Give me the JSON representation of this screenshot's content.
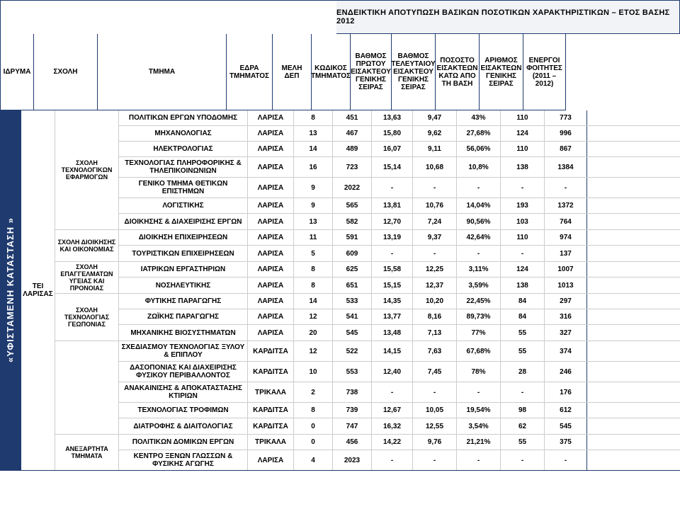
{
  "title": "ΕΝΔΕΙΚΤΙΚΗ ΑΠΟΤΥΠΩΣΗ ΒΑΣΙΚΩΝ ΠΟΣΟΤΙΚΩΝ ΧΑΡΑΚΤΗΡΙΣΤΙΚΩΝ – ΕΤΟΣ ΒΑΣΗΣ 2012",
  "vlabel": "«ΥΦΙΣΤΑΜΕΝΗ ΚΑΤΑΣΤΑΣΗ »",
  "idryma_label": "ΤΕΙ ΛΑΡΙΣΑΣ",
  "headers": {
    "idryma": "ΙΔΡΥΜΑ",
    "sxoli": "ΣΧΟΛΗ",
    "tmima": "ΤΜΗΜΑ",
    "edra": "ΕΔΡΑ ΤΜΗΜΑΤΟΣ",
    "meli": "ΜΕΛΗ ΔΕΠ",
    "kod": "ΚΩΔΙΚΟΣ ΤΜΗΜΑΤΟΣ",
    "bpr": "ΒΑΘΜΟΣ ΠΡΩΤΟΥ ΕΙΣΑΚΤΕΟΥ ΓΕΝΙΚΗΣ ΣΕΙΡΑΣ",
    "btel": "ΒΑΘΜΟΣ ΤΕΛΕΥΤΑΙΟΥ ΕΙΣΑΚΤΕΟΥ ΓΕΝΙΚΗΣ ΣΕΙΡΑΣ",
    "pos": "ΠΟΣΟΣΤΟ ΕΙΣΑΚΤΕΩΝ ΚΑΤΩ ΑΠΟ ΤΗ ΒΑΣΗ",
    "ar": "ΑΡΙΘΜΟΣ ΕΙΣΑΚΤΕΩΝ ΓΕΝΙΚΗΣ ΣΕΙΡΑΣ",
    "en": "ΕΝΕΡΓΟΙ ΦΟΙΤΗΤΕΣ (2011 – 2012)"
  },
  "schools": [
    {
      "name": "ΣΧΟΛΗ ΤΕΧΝΟΛΟΓΙΚΩΝ ΕΦΑΡΜΟΓΩΝ",
      "rows": [
        {
          "tmima": "ΠΟΛΙΤΙΚΩΝ ΕΡΓΩΝ ΥΠΟΔΟΜΗΣ",
          "edra": "ΛΑΡΙΣΑ",
          "meli": "8",
          "kod": "451",
          "bpr": "13,63",
          "btel": "9,47",
          "pos": "43%",
          "ar": "110",
          "en": "773"
        },
        {
          "tmima": "ΜΗΧΑΝΟΛΟΓΙΑΣ",
          "edra": "ΛΑΡΙΣΑ",
          "meli": "13",
          "kod": "467",
          "bpr": "15,80",
          "btel": "9,62",
          "pos": "27,68%",
          "ar": "124",
          "en": "996"
        },
        {
          "tmima": "ΗΛΕΚΤΡΟΛΟΓΙΑΣ",
          "edra": "ΛΑΡΙΣΑ",
          "meli": "14",
          "kod": "489",
          "bpr": "16,07",
          "btel": "9,11",
          "pos": "56,06%",
          "ar": "110",
          "en": "867"
        },
        {
          "tmima": "ΤΕΧΝΟΛΟΓΙΑΣ ΠΛΗΡΟΦΟΡΙΚΗΣ & ΤΗΛΕΠΙΚΟΙΝΩΝΙΩΝ",
          "edra": "ΛΑΡΙΣΑ",
          "meli": "16",
          "kod": "723",
          "bpr": "15,14",
          "btel": "10,68",
          "pos": "10,8%",
          "ar": "138",
          "en": "1384"
        },
        {
          "tmima": "ΓΕΝΙΚΟ ΤΜΗΜΑ ΘΕΤΙΚΩΝ ΕΠΙΣΤΗΜΩΝ",
          "edra": "ΛΑΡΙΣΑ",
          "meli": "9",
          "kod": "2022",
          "bpr": "-",
          "btel": "-",
          "pos": "-",
          "ar": "-",
          "en": "-"
        },
        {
          "tmima": "ΛΟΓΙΣΤΙΚΗΣ",
          "edra": "ΛΑΡΙΣΑ",
          "meli": "9",
          "kod": "565",
          "bpr": "13,81",
          "btel": "10,76",
          "pos": "14,04%",
          "ar": "193",
          "en": "1372"
        },
        {
          "tmima": "ΔΙΟΙΚΗΣΗΣ & ΔΙΑΧΕΙΡΙΣΗΣ ΕΡΓΩΝ",
          "edra": "ΛΑΡΙΣΑ",
          "meli": "13",
          "kod": "582",
          "bpr": "12,70",
          "btel": "7,24",
          "pos": "90,56%",
          "ar": "103",
          "en": "764"
        }
      ]
    },
    {
      "name": "ΣΧΟΛΗ ΔΙΟΙΚΗΣΗΣ ΚΑΙ ΟΙΚΟΝΟΜΙΑΣ",
      "rows": [
        {
          "tmima": "ΔΙΟΙΚΗΣΗ ΕΠΙΧΕΙΡΗΣΕΩΝ",
          "edra": "ΛΑΡΙΣΑ",
          "meli": "11",
          "kod": "591",
          "bpr": "13,19",
          "btel": "9,37",
          "pos": "42,64%",
          "ar": "110",
          "en": "974"
        },
        {
          "tmima": "ΤΟΥΡΙΣΤΙΚΩΝ ΕΠΙΧΕΙΡΗΣΕΩΝ",
          "edra": "ΛΑΡΙΣΑ",
          "meli": "5",
          "kod": "609",
          "bpr": "-",
          "btel": "-",
          "pos": "-",
          "ar": "-",
          "en": "137"
        }
      ]
    },
    {
      "name": "ΣΧΟΛΗ ΕΠΑΓΓΕΛΜΑΤΩΝ ΥΓΕΙΑΣ ΚΑΙ ΠΡΟΝΟΙΑΣ",
      "rows": [
        {
          "tmima": "ΙΑΤΡΙΚΩΝ ΕΡΓΑΣΤΗΡΙΩΝ",
          "edra": "ΛΑΡΙΣΑ",
          "meli": "8",
          "kod": "625",
          "bpr": "15,58",
          "btel": "12,25",
          "pos": "3,11%",
          "ar": "124",
          "en": "1007"
        },
        {
          "tmima": "ΝΟΣΗΛΕΥΤΙΚΗΣ",
          "edra": "ΛΑΡΙΣΑ",
          "meli": "8",
          "kod": "651",
          "bpr": "15,15",
          "btel": "12,37",
          "pos": "3,59%",
          "ar": "138",
          "en": "1013"
        }
      ]
    },
    {
      "name": "ΣΧΟΛΗ ΤΕΧΝΟΛΟΓΙΑΣ ΓΕΩΠΟΝΙΑΣ",
      "rows": [
        {
          "tmima": "ΦΥΤΙΚΗΣ ΠΑΡΑΓΩΓΗΣ",
          "edra": "ΛΑΡΙΣΑ",
          "meli": "14",
          "kod": "533",
          "bpr": "14,35",
          "btel": "10,20",
          "pos": "22,45%",
          "ar": "84",
          "en": "297"
        },
        {
          "tmima": "ΖΩΪΚΗΣ ΠΑΡΑΓΩΓΗΣ",
          "edra": "ΛΑΡΙΣΑ",
          "meli": "12",
          "kod": "541",
          "bpr": "13,77",
          "btel": "8,16",
          "pos": "89,73%",
          "ar": "84",
          "en": "316"
        },
        {
          "tmima": "ΜΗΧΑΝΙΚΗΣ ΒΙΟΣΥΣΤΗΜΑΤΩΝ",
          "edra": "ΛΑΡΙΣΑ",
          "meli": "20",
          "kod": "545",
          "bpr": "13,48",
          "btel": "7,13",
          "pos": "77%",
          "ar": "55",
          "en": "327"
        }
      ]
    },
    {
      "name": "",
      "rows": [
        {
          "tmima": "ΣΧΕΔΙΑΣΜΟΥ ΤΕΧΝΟΛΟΓΙΑΣ ΞΥΛΟΥ & ΕΠΙΠΛΟΥ",
          "edra": "ΚΑΡΔΙΤΣΑ",
          "meli": "12",
          "kod": "522",
          "bpr": "14,15",
          "btel": "7,63",
          "pos": "67,68%",
          "ar": "55",
          "en": "374"
        },
        {
          "tmima": "ΔΑΣΟΠΟΝΙΑΣ ΚΑΙ ΔΙΑΧΕΙΡΙΣΗΣ ΦΥΣΙΚΟΥ ΠΕΡΙΒΑΛΛΟΝΤΟΣ",
          "edra": "ΚΑΡΔΙΤΣΑ",
          "meli": "10",
          "kod": "553",
          "bpr": "12,40",
          "btel": "7,45",
          "pos": "78%",
          "ar": "28",
          "en": "246"
        },
        {
          "tmima": "ΑΝΑΚΑΙΝΙΣΗΣ & ΑΠΟΚΑΤΑΣΤΑΣΗΣ ΚΤΙΡΙΩΝ",
          "edra": "ΤΡΙΚΑΛΑ",
          "meli": "2",
          "kod": "738",
          "bpr": "-",
          "btel": "-",
          "pos": "-",
          "ar": "-",
          "en": "176"
        },
        {
          "tmima": "ΤΕΧΝΟΛΟΓΙΑΣ ΤΡΟΦΙΜΩΝ",
          "edra": "ΚΑΡΔΙΤΣΑ",
          "meli": "8",
          "kod": "739",
          "bpr": "12,67",
          "btel": "10,05",
          "pos": "19,54%",
          "ar": "98",
          "en": "612"
        },
        {
          "tmima": "ΔΙΑΤΡΟΦΗΣ & ΔΙΑΙΤΟΛΟΓΙΑΣ",
          "edra": "ΚΑΡΔΙΤΣΑ",
          "meli": "0",
          "kod": "747",
          "bpr": "16,32",
          "btel": "12,55",
          "pos": "3,54%",
          "ar": "62",
          "en": "545"
        }
      ]
    },
    {
      "name": "ΑΝΕΞΑΡΤΗΤΑ ΤΜΗΜΑΤΑ",
      "rows": [
        {
          "tmima": "ΠΟΛΙΤΙΚΩΝ ΔΟΜΙΚΩΝ ΕΡΓΩΝ",
          "edra": "ΤΡΙΚΑΛΑ",
          "meli": "0",
          "kod": "456",
          "bpr": "14,22",
          "btel": "9,76",
          "pos": "21,21%",
          "ar": "55",
          "en": "375"
        },
        {
          "tmima": "ΚΕΝΤΡΟ ΞΕΝΩΝ ΓΛΩΣΣΩΝ & ΦΥΣΙΚΗΣ ΑΓΩΓΗΣ",
          "edra": "ΛΑΡΙΣΑ",
          "meli": "4",
          "kod": "2023",
          "bpr": "-",
          "btel": "-",
          "pos": "-",
          "ar": "-",
          "en": "-"
        }
      ]
    }
  ]
}
